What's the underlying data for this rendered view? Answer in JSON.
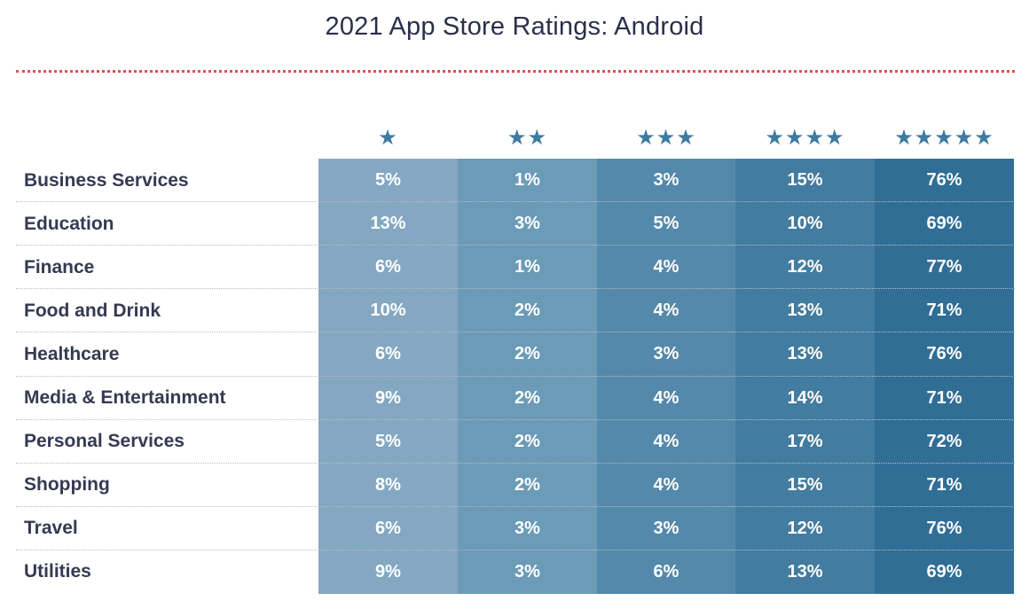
{
  "title": "2021 App Store Ratings: Android",
  "chart_data": {
    "type": "table",
    "title": "2021 App Store Ratings: Android",
    "columns": [
      "★",
      "★★",
      "★★★",
      "★★★★",
      "★★★★★"
    ],
    "column_colors": [
      "#84a8c1",
      "#6b9bb7",
      "#5489ab",
      "#427ca0",
      "#316e95"
    ],
    "rows": [
      {
        "label": "Business Services",
        "values": [
          "5%",
          "1%",
          "3%",
          "15%",
          "76%"
        ]
      },
      {
        "label": "Education",
        "values": [
          "13%",
          "3%",
          "5%",
          "10%",
          "69%"
        ]
      },
      {
        "label": "Finance",
        "values": [
          "6%",
          "1%",
          "4%",
          "12%",
          "77%"
        ]
      },
      {
        "label": "Food and Drink",
        "values": [
          "10%",
          "2%",
          "4%",
          "13%",
          "71%"
        ]
      },
      {
        "label": "Healthcare",
        "values": [
          "6%",
          "2%",
          "3%",
          "13%",
          "76%"
        ]
      },
      {
        "label": "Media & Entertainment",
        "values": [
          "9%",
          "2%",
          "4%",
          "14%",
          "71%"
        ]
      },
      {
        "label": "Personal Services",
        "values": [
          "5%",
          "2%",
          "4%",
          "17%",
          "72%"
        ]
      },
      {
        "label": "Shopping",
        "values": [
          "8%",
          "2%",
          "4%",
          "15%",
          "71%"
        ]
      },
      {
        "label": "Travel",
        "values": [
          "6%",
          "3%",
          "3%",
          "12%",
          "76%"
        ]
      },
      {
        "label": "Utilities",
        "values": [
          "9%",
          "3%",
          "6%",
          "13%",
          "69%"
        ]
      }
    ]
  }
}
